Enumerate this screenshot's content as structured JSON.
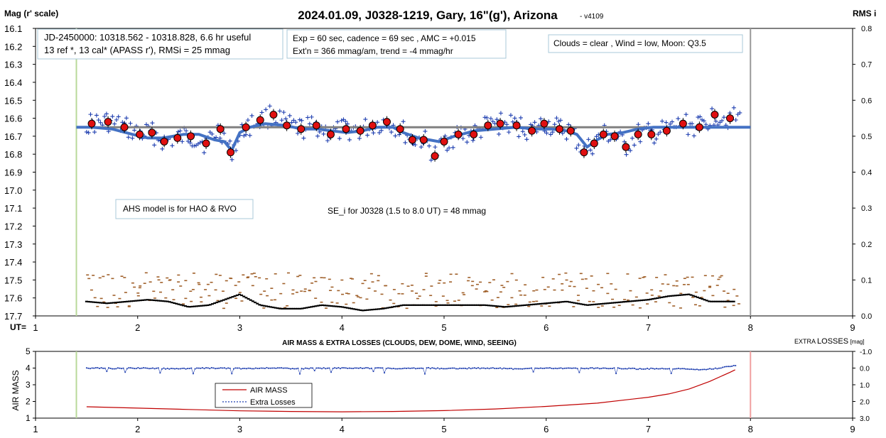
{
  "chart_data": [
    {
      "type": "scatter",
      "title": "2024.01.09, J0328-1219, Gary, 16\"(g'), Arizona",
      "version_label": "- v4109",
      "ylabel": "Mag (r' scale)",
      "y2label": "RMS i",
      "xlabel": "UT=",
      "xlim": [
        1,
        9
      ],
      "ylim": [
        16.1,
        17.7
      ],
      "y2lim": [
        0.0,
        0.8
      ],
      "y_ticks": [
        "16.1",
        "16.2",
        "16.3",
        "16.4",
        "16.5",
        "16.6",
        "16.7",
        "16.8",
        "16.9",
        "17.0",
        "17.1",
        "17.2",
        "17.3",
        "17.4",
        "17.5",
        "17.6",
        "17.7"
      ],
      "y2_ticks": [
        "0.8",
        "0.7",
        "0.6",
        "0.5",
        "0.4",
        "0.3",
        "0.2",
        "0.1",
        "0.0"
      ],
      "x_ticks": [
        "1",
        "2",
        "3",
        "4",
        "5",
        "6",
        "7",
        "8",
        "9"
      ],
      "grid": false,
      "vertical_markers": [
        {
          "x": 1.4,
          "color": "#b8d89a"
        },
        {
          "x": 8.0,
          "color": "#999999"
        }
      ],
      "reference_line": {
        "y": 16.65,
        "color": "#808080"
      },
      "annotations": [
        {
          "lines": [
            "JD-2450000: 10318.562 - 10318.828, 6.6 hr useful",
            "13 ref *, 13 cal*  (APASS r'), RMSi = 25 mmag"
          ]
        },
        {
          "lines": [
            "Exp = 60 sec, cadence = 69 sec , AMC = +0.015",
            "Ext'n = 366 mmag/am, trend = -4 mmag/hr"
          ]
        },
        {
          "lines": [
            "Clouds = clear , Wind = low,  Moon:  Q3.5"
          ]
        },
        {
          "lines": [
            "AHS model is for HAO & RVO"
          ]
        },
        {
          "lines": [
            "SE_i for J0328 (1.5 to 8.0 UT) = 48 mmag"
          ]
        }
      ],
      "series": [
        {
          "kind": "binned",
          "color": "#e01010",
          "x": [
            1.55,
            1.71,
            1.87,
            2.02,
            2.14,
            2.26,
            2.39,
            2.52,
            2.67,
            2.81,
            2.91,
            3.06,
            3.2,
            3.33,
            3.46,
            3.6,
            3.75,
            3.89,
            4.04,
            4.18,
            4.3,
            4.44,
            4.57,
            4.69,
            4.8,
            4.91,
            5.0,
            5.14,
            5.29,
            5.43,
            5.55,
            5.71,
            5.86,
            5.98,
            6.13,
            6.24,
            6.37,
            6.47,
            6.56,
            6.67,
            6.78,
            6.9,
            7.03,
            7.18,
            7.34,
            7.5,
            7.65,
            7.8
          ],
          "values": [
            16.63,
            16.62,
            16.65,
            16.69,
            16.68,
            16.73,
            16.71,
            16.7,
            16.74,
            16.66,
            16.79,
            16.65,
            16.61,
            16.58,
            16.64,
            16.66,
            16.64,
            16.69,
            16.66,
            16.67,
            16.64,
            16.62,
            16.66,
            16.72,
            16.72,
            16.81,
            16.73,
            16.69,
            16.69,
            16.64,
            16.63,
            16.64,
            16.67,
            16.63,
            16.66,
            16.67,
            16.79,
            16.74,
            16.69,
            16.7,
            16.76,
            16.69,
            16.69,
            16.67,
            16.63,
            16.65,
            16.58,
            16.6
          ]
        },
        {
          "kind": "model",
          "color": "#4472c4",
          "x": [
            1.4,
            1.55,
            1.75,
            1.95,
            2.1,
            2.25,
            2.45,
            2.6,
            2.75,
            2.85,
            2.92,
            3.0,
            3.1,
            3.25,
            3.45,
            3.6,
            3.75,
            3.9,
            4.05,
            4.2,
            4.35,
            4.5,
            4.6,
            4.75,
            4.85,
            4.95,
            5.1,
            5.3,
            5.5,
            5.7,
            5.9,
            6.05,
            6.2,
            6.3,
            6.4,
            6.5,
            6.6,
            6.75,
            6.9,
            7.05,
            7.2,
            7.4,
            7.6,
            7.8,
            8.0
          ],
          "values": [
            16.65,
            16.65,
            16.66,
            16.69,
            16.71,
            16.71,
            16.69,
            16.69,
            16.72,
            16.73,
            16.78,
            16.68,
            16.65,
            16.63,
            16.64,
            16.66,
            16.66,
            16.67,
            16.68,
            16.67,
            16.65,
            16.65,
            16.68,
            16.71,
            16.72,
            16.73,
            16.7,
            16.67,
            16.66,
            16.65,
            16.66,
            16.66,
            16.67,
            16.69,
            16.76,
            16.72,
            16.69,
            16.68,
            16.66,
            16.65,
            16.65,
            16.65,
            16.65,
            16.65,
            16.65
          ]
        },
        {
          "kind": "trend",
          "color": "#000000",
          "axis": "y2",
          "x": [
            1.5,
            1.7,
            1.9,
            2.1,
            2.3,
            2.5,
            2.7,
            2.9,
            3.0,
            3.2,
            3.4,
            3.6,
            3.8,
            4.0,
            4.2,
            4.4,
            4.6,
            4.8,
            5.0,
            5.2,
            5.4,
            5.6,
            5.8,
            6.0,
            6.2,
            6.4,
            6.6,
            6.8,
            7.0,
            7.2,
            7.4,
            7.6,
            7.8
          ],
          "values": [
            0.04,
            0.035,
            0.04,
            0.045,
            0.04,
            0.025,
            0.03,
            0.05,
            0.06,
            0.03,
            0.02,
            0.02,
            0.03,
            0.025,
            0.015,
            0.02,
            0.03,
            0.03,
            0.03,
            0.03,
            0.03,
            0.025,
            0.03,
            0.035,
            0.04,
            0.03,
            0.035,
            0.04,
            0.045,
            0.055,
            0.06,
            0.04,
            0.04
          ]
        }
      ]
    },
    {
      "type": "line",
      "title": "AIR MASS & EXTRA LOSSES (CLOUDS, DEW, DOME, WIND, SEEING)",
      "ylabel": "AIR MASS",
      "y2label_prefix": "EXTRA",
      "y2label_main": "LOSSES",
      "y2label_unit": "[mag]",
      "xlim": [
        1,
        9
      ],
      "ylim": [
        1,
        5
      ],
      "y2lim": [
        3.0,
        -1.0
      ],
      "y_ticks": [
        "1",
        "2",
        "3",
        "4",
        "5"
      ],
      "y2_ticks": [
        "-1.0",
        "0.0",
        "1.0",
        "2.0",
        "3.0"
      ],
      "x_ticks": [
        "1",
        "2",
        "3",
        "4",
        "5",
        "6",
        "7",
        "8",
        "9"
      ],
      "legend": {
        "placement": "left",
        "entries": [
          "AIR MASS",
          "Extra Losses"
        ]
      },
      "vertical_markers": [
        {
          "x": 1.4,
          "color": "#b8d89a"
        },
        {
          "x": 8.0,
          "color": "#f0a0a0"
        }
      ],
      "series": [
        {
          "name": "AIR MASS",
          "color": "#c00000",
          "x": [
            1.5,
            2.0,
            2.5,
            3.0,
            3.5,
            4.0,
            4.5,
            5.0,
            5.5,
            6.0,
            6.5,
            7.0,
            7.2,
            7.4,
            7.6,
            7.8,
            7.85
          ],
          "values": [
            1.68,
            1.6,
            1.52,
            1.44,
            1.4,
            1.38,
            1.4,
            1.45,
            1.55,
            1.7,
            1.9,
            2.25,
            2.45,
            2.75,
            3.2,
            3.75,
            3.9
          ]
        },
        {
          "name": "Extra Losses",
          "color": "#1f3fb0",
          "x": [
            1.5,
            1.8,
            2.1,
            2.4,
            2.7,
            3.0,
            3.3,
            3.6,
            3.9,
            4.2,
            4.5,
            4.8,
            5.1,
            5.4,
            5.7,
            6.0,
            6.3,
            6.6,
            6.9,
            7.2,
            7.5,
            7.7,
            7.85
          ],
          "values": [
            0.0,
            0.02,
            0.0,
            0.05,
            0.0,
            0.02,
            0.0,
            0.03,
            0.0,
            0.0,
            0.02,
            0.0,
            0.03,
            0.0,
            0.05,
            0.0,
            0.02,
            0.0,
            0.05,
            0.02,
            0.1,
            0.0,
            -0.15
          ]
        }
      ]
    }
  ]
}
